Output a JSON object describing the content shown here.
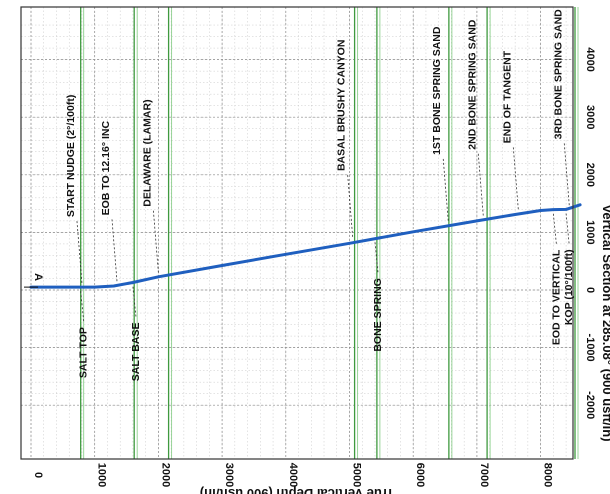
{
  "chart_data": {
    "type": "line",
    "orientation": "rotated-90",
    "xlabel": "Vertical Section at 285.08° (900 usft/in)",
    "ylabel": "True Vertical Depth (900 usft/in)",
    "xlim": [
      -2000,
      4700
    ],
    "ylim": [
      -200,
      8900
    ],
    "x_ticks": [
      -2000,
      -1000,
      0,
      1000,
      2000,
      3000,
      4000
    ],
    "y_ticks": [
      0,
      1000,
      2000,
      3000,
      4000,
      5000,
      6000,
      7000,
      8000
    ],
    "grid": true,
    "series": [
      {
        "color": "#1f5fbf",
        "points": [
          {
            "tvd": 0,
            "vs": 50
          },
          {
            "tvd": 400,
            "vs": 50
          },
          {
            "tvd": 700,
            "vs": 50
          },
          {
            "tvd": 1000,
            "vs": 50
          },
          {
            "tvd": 1300,
            "vs": 70
          },
          {
            "tvd": 1600,
            "vs": 130
          },
          {
            "tvd": 2000,
            "vs": 230
          },
          {
            "tvd": 3000,
            "vs": 425
          },
          {
            "tvd": 4000,
            "vs": 620
          },
          {
            "tvd": 5000,
            "vs": 810
          },
          {
            "tvd": 6000,
            "vs": 1010
          },
          {
            "tvd": 7000,
            "vs": 1200
          },
          {
            "tvd": 7600,
            "vs": 1310
          },
          {
            "tvd": 8000,
            "vs": 1380
          },
          {
            "tvd": 8200,
            "vs": 1395
          },
          {
            "tvd": 8400,
            "vs": 1400
          },
          {
            "tvd": 8620,
            "vs": 1480
          }
        ]
      }
    ],
    "formations": [
      {
        "name": "SALT TOP",
        "tvd": 780
      },
      {
        "name": "SALT BASE",
        "tvd": 1620
      },
      {
        "name": "DELAWARE (LAMAR)",
        "tvd": 2160
      },
      {
        "name": "BASAL BRUSHY CANYON",
        "tvd": 5080
      },
      {
        "name": "BONE SPRING",
        "tvd": 5430
      },
      {
        "name": "1ST BONE SPRING SAND",
        "tvd": 6560
      },
      {
        "name": "2ND BONE SPRING SAND",
        "tvd": 7160
      },
      {
        "name": "3RD BONE SPRING SAND",
        "tvd": 8540
      }
    ],
    "annotations": [
      {
        "text": "START NUDGE (2°/100ft)",
        "tvd": 800,
        "vs": 50,
        "side": "top"
      },
      {
        "text": "EOB TO 12.16° INC",
        "tvd": 1350,
        "vs": 80,
        "side": "top"
      },
      {
        "text": "DELAWARE (LAMAR)",
        "tvd": 2000,
        "vs": 230,
        "side": "top"
      },
      {
        "text": "BASAL BRUSHY CANYON",
        "tvd": 5050,
        "vs": 850,
        "side": "top"
      },
      {
        "text": "1ST BONE SPRING SAND",
        "tvd": 6550,
        "vs": 1130,
        "side": "top"
      },
      {
        "text": "2ND BONE SPRING SAND",
        "tvd": 7100,
        "vs": 1220,
        "side": "top"
      },
      {
        "text": "END OF TANGENT",
        "tvd": 7650,
        "vs": 1330,
        "side": "top"
      },
      {
        "text": "3RD BONE SPRING SAND",
        "tvd": 8450,
        "vs": 1400,
        "side": "top"
      },
      {
        "text": "SALT TOP",
        "tvd": 780,
        "vs": 50,
        "side": "bottom"
      },
      {
        "text": "SALT BASE",
        "tvd": 1600,
        "vs": 130,
        "side": "bottom"
      },
      {
        "text": "BONE SPRING",
        "tvd": 5400,
        "vs": 900,
        "side": "bottom"
      },
      {
        "text": "EOD TO VERTICAL",
        "tvd": 8200,
        "vs": 1395,
        "side": "bottom"
      },
      {
        "text": "KOP (10°/100ft)",
        "tvd": 8400,
        "vs": 1400,
        "side": "bottom"
      }
    ],
    "start_marker": {
      "label": "A",
      "tvd": 0,
      "vs": 50
    }
  }
}
